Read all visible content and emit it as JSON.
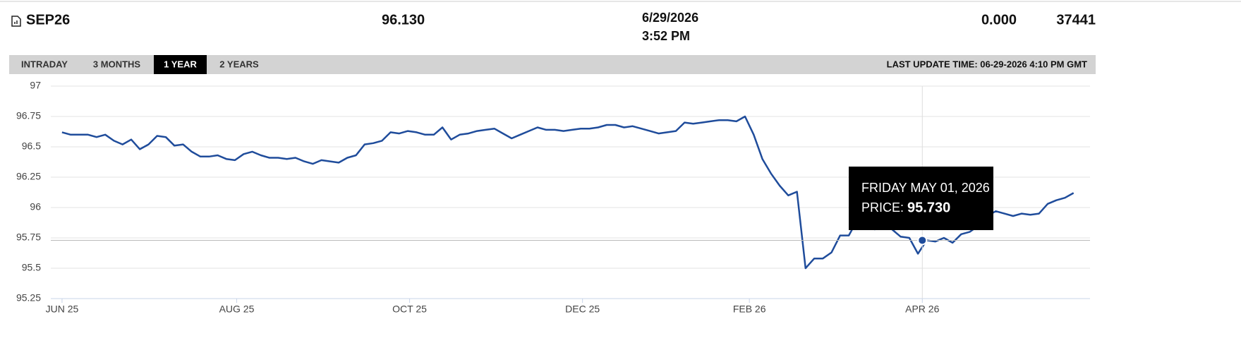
{
  "header": {
    "symbol": "SEP26",
    "price": "96.130",
    "date": "6/29/2026",
    "time": "3:52 PM",
    "change": "0.000",
    "volume": "37441"
  },
  "tabs": [
    "INTRADAY",
    "3 MONTHS",
    "1 YEAR",
    "2 YEARS"
  ],
  "active_tab": "1 YEAR",
  "last_update": "LAST UPDATE TIME: 06-29-2026 4:10 PM GMT",
  "tooltip": {
    "date": "FRIDAY MAY 01, 2026",
    "price_label": "PRICE:",
    "price": "95.730"
  },
  "chart_data": {
    "type": "line",
    "color": "#1f4c9b",
    "grid": true,
    "values": [
      96.62,
      96.6,
      96.6,
      96.6,
      96.58,
      96.6,
      96.55,
      96.52,
      96.56,
      96.48,
      96.52,
      96.59,
      96.58,
      96.51,
      96.52,
      96.46,
      96.42,
      96.42,
      96.43,
      96.4,
      96.39,
      96.44,
      96.46,
      96.43,
      96.41,
      96.41,
      96.4,
      96.41,
      96.38,
      96.36,
      96.39,
      96.38,
      96.37,
      96.41,
      96.43,
      96.52,
      96.53,
      96.55,
      96.62,
      96.61,
      96.63,
      96.62,
      96.6,
      96.6,
      96.66,
      96.56,
      96.6,
      96.61,
      96.63,
      96.64,
      96.65,
      96.61,
      96.57,
      96.6,
      96.63,
      96.66,
      96.64,
      96.64,
      96.63,
      96.64,
      96.65,
      96.65,
      96.66,
      96.68,
      96.68,
      96.66,
      96.67,
      96.65,
      96.63,
      96.61,
      96.62,
      96.63,
      96.7,
      96.69,
      96.7,
      96.71,
      96.72,
      96.72,
      96.71,
      96.75,
      96.6,
      96.4,
      96.28,
      96.18,
      96.1,
      96.13,
      95.5,
      95.58,
      95.58,
      95.63,
      95.77,
      95.77,
      95.9,
      95.85,
      95.82,
      95.85,
      95.82,
      95.76,
      95.75,
      95.62,
      95.73,
      95.72,
      95.75,
      95.71,
      95.78,
      95.8,
      95.85,
      95.93,
      95.97,
      95.95,
      95.93,
      95.95,
      95.94,
      95.95,
      96.03,
      96.06,
      96.08,
      96.12
    ],
    "xlim": [
      -1.3,
      118.9
    ],
    "xticks": [
      {
        "value": 0,
        "label": "JUN 25"
      },
      {
        "value": 20.2,
        "label": "AUG 25"
      },
      {
        "value": 40.2,
        "label": "OCT 25"
      },
      {
        "value": 60.2,
        "label": "DEC 25"
      },
      {
        "value": 79.5,
        "label": "FEB 26"
      },
      {
        "value": 99.5,
        "label": "APR 26"
      }
    ],
    "ylim": [
      95.25,
      97
    ],
    "yticks": [
      95.25,
      95.5,
      95.75,
      96,
      96.25,
      96.5,
      96.75,
      97
    ]
  }
}
